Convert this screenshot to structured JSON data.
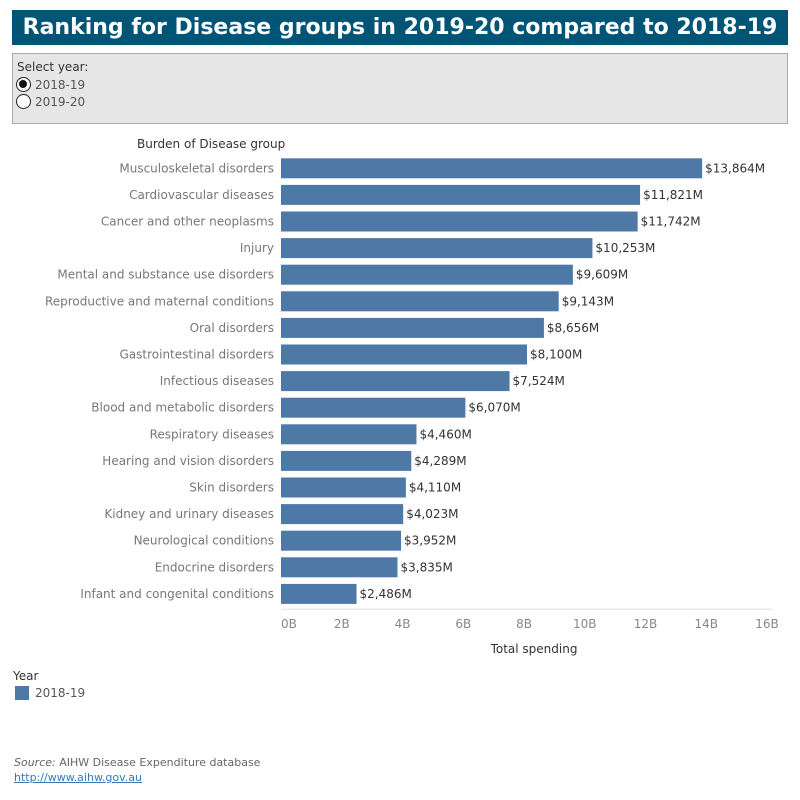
{
  "header": {
    "title": "Ranking for Disease groups in 2019-20 compared to 2018-19"
  },
  "year_selector": {
    "label": "Select year:",
    "options": [
      {
        "label": "2018-19",
        "checked": true
      },
      {
        "label": "2019-20",
        "checked": false
      }
    ]
  },
  "chart_data": {
    "type": "bar",
    "orientation": "horizontal",
    "category_axis_title": "Burden of Disease group",
    "xlabel": "Total spending",
    "categories": [
      "Musculoskeletal disorders",
      "Cardiovascular diseases",
      "Cancer and other neoplasms",
      "Injury",
      "Mental and substance use disorders",
      "Reproductive and maternal conditions",
      "Oral disorders",
      "Gastrointestinal disorders",
      "Infectious diseases",
      "Blood and metabolic disorders",
      "Respiratory diseases",
      "Hearing and vision disorders",
      "Skin disorders",
      "Kidney and urinary diseases",
      "Neurological conditions",
      "Endocrine disorders",
      "Infant and congenital conditions"
    ],
    "series": [
      {
        "name": "2018-19",
        "color": "#4e79a7",
        "values": [
          13864,
          11821,
          11742,
          10253,
          9609,
          9143,
          8656,
          8100,
          7524,
          6070,
          4460,
          4289,
          4110,
          4023,
          3952,
          3835,
          2486
        ],
        "labels": [
          "$13,864M",
          "$11,821M",
          "$11,742M",
          "$10,253M",
          "$9,609M",
          "$9,143M",
          "$8,656M",
          "$8,100M",
          "$7,524M",
          "$6,070M",
          "$4,460M",
          "$4,289M",
          "$4,110M",
          "$4,023M",
          "$3,952M",
          "$3,835M",
          "$2,486M"
        ]
      }
    ],
    "value_unit": "$M",
    "xlim": [
      0,
      16000
    ],
    "xticks": [
      0,
      2000,
      4000,
      6000,
      8000,
      10000,
      12000,
      14000,
      16000
    ],
    "xtick_labels": [
      "0B",
      "2B",
      "4B",
      "6B",
      "8B",
      "10B",
      "12B",
      "14B",
      "16B"
    ],
    "grid": false,
    "legend": {
      "title": "Year",
      "position": "bottom-left"
    }
  },
  "legend": {
    "title": "Year",
    "items": [
      {
        "label": "2018-19",
        "color": "#4e79a7"
      }
    ]
  },
  "footer": {
    "source_prefix": "Source:",
    "source_text": " AIHW Disease Expenditure database",
    "link": "http://www.aihw.gov.au"
  }
}
